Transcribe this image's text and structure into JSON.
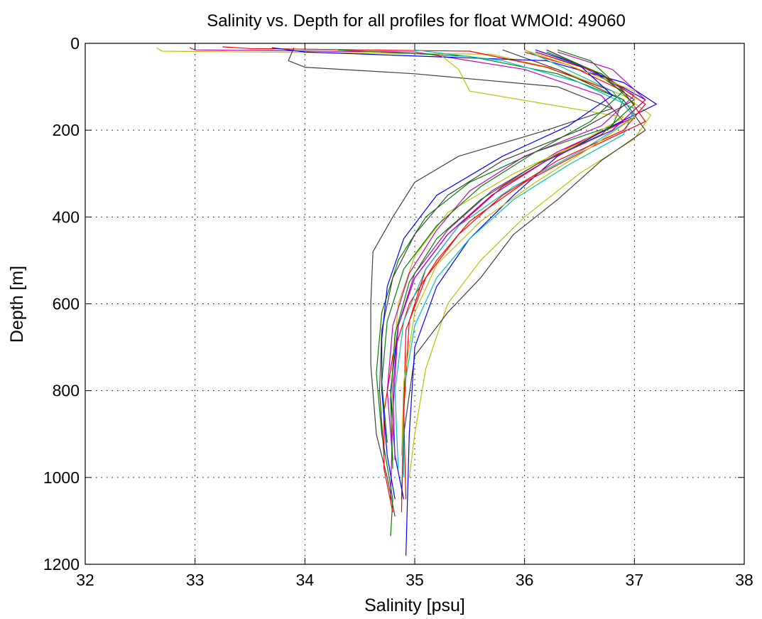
{
  "chart_data": {
    "type": "line",
    "title": "Salinity vs. Depth for all profiles for float WMOId: 49060",
    "xlabel": "Salinity [psu]",
    "ylabel": "Depth [m]",
    "xlim": [
      32,
      38
    ],
    "ylim": [
      0,
      1200
    ],
    "y_reversed": true,
    "grid": true,
    "xticks": [
      "32",
      "33",
      "34",
      "35",
      "36",
      "37",
      "38"
    ],
    "yticks": [
      "0",
      "200",
      "400",
      "600",
      "800",
      "1000",
      "1200"
    ],
    "colors": [
      "#0000ff",
      "#008000",
      "#ff0000",
      "#00bfbf",
      "#bf00bf",
      "#bfbf00",
      "#404040"
    ],
    "series": [
      {
        "color": "#bfbf00",
        "x": [
          32.65,
          32.7,
          35.7,
          36.3,
          36.9,
          37.15,
          37.0,
          36.5,
          36.0,
          35.6,
          35.3,
          35.1,
          35.0,
          34.95
        ],
        "y": [
          10,
          18,
          25,
          60,
          120,
          165,
          220,
          300,
          400,
          500,
          600,
          750,
          900,
          1000
        ]
      },
      {
        "color": "#bf00bf",
        "x": [
          32.95,
          33.0,
          35.0,
          36.0,
          36.7,
          36.9,
          36.3,
          35.7,
          35.3,
          35.0,
          34.85,
          34.8,
          34.78
        ],
        "y": [
          10,
          15,
          20,
          60,
          120,
          180,
          250,
          340,
          430,
          530,
          650,
          850,
          1050
        ]
      },
      {
        "color": "#ff0000",
        "x": [
          33.25,
          33.5,
          35.5,
          36.2,
          36.8,
          37.0,
          36.4,
          35.8,
          35.4,
          35.1,
          34.95,
          34.9,
          34.88
        ],
        "y": [
          8,
          12,
          18,
          55,
          110,
          170,
          240,
          330,
          420,
          520,
          640,
          850,
          1080
        ]
      },
      {
        "color": "#404040",
        "x": [
          33.9,
          33.85,
          34.0,
          35.0,
          36.3,
          36.8,
          36.2,
          35.4,
          35.0,
          34.8,
          34.62,
          34.6,
          34.6,
          34.65,
          34.75,
          34.82
        ],
        "y": [
          10,
          40,
          55,
          70,
          100,
          150,
          200,
          260,
          320,
          400,
          480,
          600,
          740,
          900,
          1000,
          1090
        ]
      },
      {
        "color": "#404040",
        "x": [
          35.8,
          36.3,
          36.9,
          37.1,
          36.7,
          36.3,
          35.9,
          35.6,
          35.3,
          35.0,
          34.9,
          34.88
        ],
        "y": [
          15,
          60,
          130,
          200,
          270,
          360,
          440,
          540,
          620,
          720,
          900,
          1050
        ]
      },
      {
        "color": "#0000ff",
        "x": [
          33.7,
          34.0,
          36.2,
          36.9,
          37.2,
          36.8,
          36.3,
          35.9,
          35.5,
          35.2,
          35.0,
          34.95,
          34.92
        ],
        "y": [
          10,
          20,
          40,
          90,
          140,
          190,
          260,
          350,
          450,
          560,
          700,
          900,
          1180
        ]
      },
      {
        "color": "#008000",
        "x": [
          34.3,
          35.5,
          36.3,
          36.9,
          36.8,
          36.1,
          35.5,
          35.1,
          34.85,
          34.7,
          34.65,
          34.7,
          34.8,
          34.78
        ],
        "y": [
          15,
          30,
          70,
          130,
          190,
          250,
          320,
          400,
          500,
          620,
          760,
          900,
          1050,
          1135
        ]
      },
      {
        "color": "#00bfbf",
        "x": [
          35.0,
          35.8,
          36.5,
          37.0,
          36.9,
          36.4,
          35.9,
          35.5,
          35.2,
          35.0,
          34.9,
          34.9
        ],
        "y": [
          15,
          40,
          90,
          150,
          210,
          280,
          360,
          450,
          540,
          650,
          800,
          1000
        ]
      },
      {
        "color": "#ff0000",
        "x": [
          36.0,
          36.4,
          36.9,
          37.1,
          36.6,
          36.0,
          35.5,
          35.2,
          34.95,
          34.8,
          34.72,
          34.72,
          34.8
        ],
        "y": [
          20,
          50,
          110,
          180,
          240,
          320,
          410,
          500,
          600,
          720,
          850,
          980,
          1080
        ]
      },
      {
        "color": "#0000ff",
        "x": [
          36.1,
          36.6,
          37.1,
          36.8,
          36.2,
          35.7,
          35.3,
          35.0,
          34.85,
          34.78,
          34.82,
          34.9
        ],
        "y": [
          20,
          60,
          130,
          200,
          270,
          350,
          440,
          540,
          650,
          800,
          950,
          1050
        ]
      },
      {
        "color": "#bfbf00",
        "x": [
          35.2,
          35.4,
          35.5,
          36.2,
          36.9,
          36.5,
          35.9,
          35.3,
          35.0,
          34.85,
          34.8,
          34.8
        ],
        "y": [
          20,
          60,
          110,
          140,
          170,
          230,
          300,
          390,
          490,
          600,
          750,
          900
        ]
      },
      {
        "color": "#bf00bf",
        "x": [
          36.2,
          36.5,
          37.0,
          36.7,
          36.0,
          35.5,
          35.2,
          34.95,
          34.8,
          34.75,
          34.8
        ],
        "y": [
          15,
          50,
          120,
          190,
          260,
          340,
          430,
          530,
          650,
          800,
          960
        ]
      },
      {
        "color": "#008000",
        "x": [
          36.3,
          36.6,
          36.9,
          36.6,
          36.1,
          35.6,
          35.2,
          34.9,
          34.75,
          34.7,
          34.75
        ],
        "y": [
          15,
          40,
          110,
          180,
          250,
          330,
          420,
          520,
          640,
          780,
          920
        ]
      },
      {
        "color": "#00bfbf",
        "x": [
          36.0,
          36.3,
          36.8,
          37.0,
          36.5,
          35.9,
          35.4,
          35.1,
          34.9,
          34.82,
          34.85
        ],
        "y": [
          15,
          50,
          110,
          170,
          250,
          330,
          420,
          520,
          640,
          800,
          980
        ]
      },
      {
        "color": "#ff0000",
        "x": [
          36.1,
          36.7,
          37.1,
          36.9,
          36.3,
          35.8,
          35.4,
          35.1,
          34.92,
          34.9,
          34.92
        ],
        "y": [
          20,
          70,
          140,
          200,
          270,
          350,
          440,
          540,
          660,
          850,
          1050
        ]
      },
      {
        "color": "#404040",
        "x": [
          36.2,
          36.6,
          37.0,
          36.5,
          35.8,
          35.3,
          35.0,
          34.8,
          34.7,
          34.68,
          34.72
        ],
        "y": [
          15,
          60,
          130,
          200,
          270,
          350,
          440,
          540,
          660,
          800,
          950
        ]
      },
      {
        "color": "#0000ff",
        "x": [
          36.1,
          36.5,
          36.8,
          36.4,
          35.8,
          35.2,
          34.9,
          34.75,
          34.7,
          34.7,
          34.75,
          34.82
        ],
        "y": [
          15,
          50,
          120,
          190,
          260,
          350,
          450,
          560,
          680,
          800,
          950,
          1050
        ]
      },
      {
        "color": "#bfbf00",
        "x": [
          36.0,
          36.4,
          37.0,
          37.0,
          36.6,
          36.1,
          35.6,
          35.2,
          35.0,
          34.9,
          34.88
        ],
        "y": [
          15,
          50,
          110,
          170,
          240,
          320,
          410,
          510,
          620,
          780,
          950
        ]
      },
      {
        "color": "#008000",
        "x": [
          36.2,
          36.7,
          37.0,
          36.7,
          36.1,
          35.6,
          35.2,
          34.95,
          34.82,
          34.78,
          34.8
        ],
        "y": [
          20,
          70,
          140,
          210,
          280,
          360,
          450,
          550,
          670,
          820,
          980
        ]
      },
      {
        "color": "#bf00bf",
        "x": [
          36.3,
          36.8,
          37.1,
          36.8,
          36.2,
          35.7,
          35.3,
          35.0,
          34.85,
          34.8,
          34.82
        ],
        "y": [
          20,
          60,
          130,
          200,
          270,
          350,
          440,
          540,
          650,
          800,
          960
        ]
      }
    ]
  }
}
